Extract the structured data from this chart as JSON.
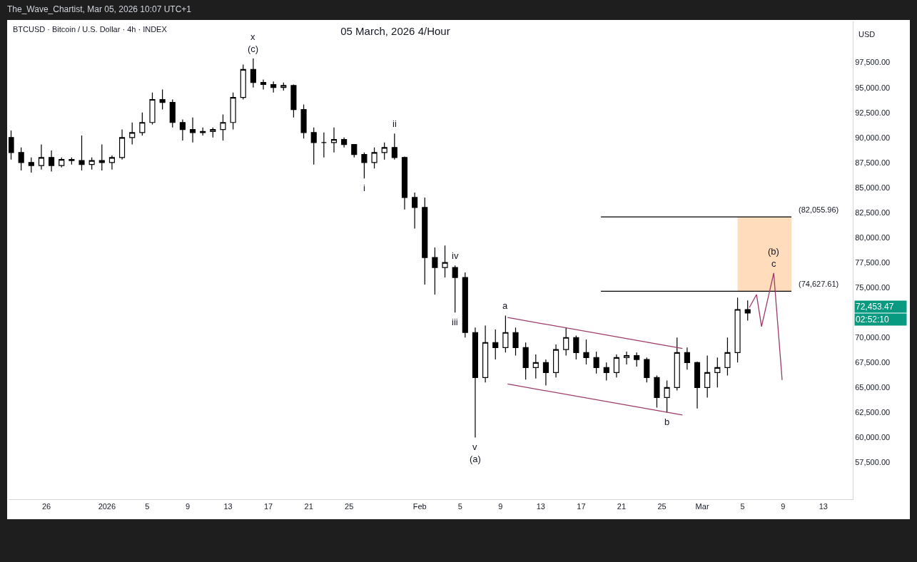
{
  "chart_data": {
    "type": "candlestick",
    "title": "05 March, 2026 4/Hour",
    "subtitle": "BTCUSD · Bitcoin / U.S. Dollar · 4h · INDEX",
    "color": "#000000",
    "x": [
      "2025-12-22T12:00",
      "2025-12-23T12:00",
      "2025-12-24T12:00",
      "2025-12-25T12:00",
      "2025-12-26T12:00",
      "2025-12-27T12:00",
      "2025-12-28T12:00",
      "2025-12-29T12:00",
      "2025-12-30T12:00",
      "2025-12-31T12:00",
      "2026-01-01T12:00",
      "2026-01-02T12:00",
      "2026-01-03T12:00",
      "2026-01-04T12:00",
      "2026-01-05T12:00",
      "2026-01-06T12:00",
      "2026-01-07T12:00",
      "2026-01-08T12:00",
      "2026-01-09T12:00",
      "2026-01-10T12:00",
      "2026-01-11T12:00",
      "2026-01-12T12:00",
      "2026-01-13T12:00",
      "2026-01-14T12:00",
      "2026-01-15T12:00",
      "2026-01-16T12:00",
      "2026-01-17T12:00",
      "2026-01-18T12:00",
      "2026-01-19T12:00",
      "2026-01-20T12:00",
      "2026-01-21T12:00",
      "2026-01-22T12:00",
      "2026-01-23T12:00",
      "2026-01-24T12:00",
      "2026-01-25T12:00",
      "2026-01-26T12:00",
      "2026-01-27T12:00",
      "2026-01-28T12:00",
      "2026-01-29T12:00",
      "2026-01-30T12:00",
      "2026-01-31T12:00",
      "2026-02-01T12:00",
      "2026-02-02T12:00",
      "2026-02-03T12:00",
      "2026-02-04T12:00",
      "2026-02-05T12:00",
      "2026-02-06T12:00",
      "2026-02-07T12:00",
      "2026-02-08T12:00",
      "2026-02-09T12:00",
      "2026-02-10T12:00",
      "2026-02-11T12:00",
      "2026-02-12T12:00",
      "2026-02-13T12:00",
      "2026-02-14T12:00",
      "2026-02-15T12:00",
      "2026-02-16T12:00",
      "2026-02-17T12:00",
      "2026-02-18T12:00",
      "2026-02-19T12:00",
      "2026-02-20T12:00",
      "2026-02-21T12:00",
      "2026-02-22T12:00",
      "2026-02-23T12:00",
      "2026-02-24T12:00",
      "2026-02-25T12:00",
      "2026-02-26T12:00",
      "2026-02-27T12:00",
      "2026-02-28T12:00",
      "2026-03-01T12:00",
      "2026-03-02T12:00",
      "2026-03-03T12:00",
      "2026-03-04T12:00",
      "2026-03-05T12:00"
    ],
    "ohlc": [
      [
        90000,
        90700,
        87800,
        88500
      ],
      [
        88500,
        89000,
        86700,
        87500
      ],
      [
        87500,
        88000,
        86500,
        87200
      ],
      [
        87200,
        89300,
        86800,
        88000
      ],
      [
        88000,
        88700,
        86600,
        87200
      ],
      [
        87200,
        88000,
        87000,
        87800
      ],
      [
        87800,
        88000,
        87300,
        87700
      ],
      [
        87700,
        90200,
        86700,
        87300
      ],
      [
        87300,
        88000,
        86800,
        87700
      ],
      [
        87700,
        89300,
        86700,
        87500
      ],
      [
        87500,
        88200,
        86800,
        88000
      ],
      [
        88000,
        90800,
        87800,
        90000
      ],
      [
        90000,
        91500,
        89300,
        90500
      ],
      [
        90500,
        92500,
        90200,
        91500
      ],
      [
        91500,
        94500,
        91300,
        93800
      ],
      [
        93800,
        94800,
        92800,
        93500
      ],
      [
        93500,
        93800,
        91000,
        91500
      ],
      [
        91500,
        91800,
        89700,
        90800
      ],
      [
        90800,
        92000,
        89500,
        90500
      ],
      [
        90500,
        91000,
        90200,
        90600
      ],
      [
        90600,
        91000,
        90000,
        90800
      ],
      [
        90800,
        92300,
        89700,
        91500
      ],
      [
        91500,
        94500,
        90800,
        94000
      ],
      [
        94000,
        97300,
        93800,
        96800
      ],
      [
        96800,
        97900,
        95000,
        95500
      ],
      [
        95500,
        95800,
        94800,
        95300
      ],
      [
        95300,
        95600,
        94500,
        95000
      ],
      [
        95000,
        95500,
        94700,
        95200
      ],
      [
        95200,
        95300,
        92000,
        92800
      ],
      [
        92800,
        93300,
        89900,
        90500
      ],
      [
        90500,
        91000,
        87300,
        89500
      ],
      [
        89500,
        90500,
        88000,
        89500
      ],
      [
        89500,
        91000,
        88500,
        89800
      ],
      [
        89800,
        90000,
        89000,
        89300
      ],
      [
        89300,
        89300,
        88000,
        88300
      ],
      [
        88300,
        88500,
        85900,
        87500
      ],
      [
        87500,
        89000,
        86900,
        88500
      ],
      [
        88500,
        89500,
        87800,
        89000
      ],
      [
        89000,
        90400,
        87800,
        88000
      ],
      [
        88000,
        88100,
        82800,
        84000
      ],
      [
        84000,
        84500,
        80900,
        83000
      ],
      [
        83000,
        84000,
        75300,
        78000
      ],
      [
        78000,
        79000,
        74300,
        77000
      ],
      [
        77000,
        79200,
        76000,
        77500
      ],
      [
        77000,
        77200,
        72500,
        76000
      ],
      [
        76000,
        76500,
        70000,
        70500
      ],
      [
        70500,
        71000,
        60000,
        66000
      ],
      [
        66000,
        71200,
        65500,
        69500
      ],
      [
        69500,
        70800,
        67800,
        69000
      ],
      [
        69000,
        72200,
        68500,
        70500
      ],
      [
        70500,
        71000,
        68200,
        69000
      ],
      [
        69000,
        69500,
        65800,
        67000
      ],
      [
        67000,
        68300,
        65900,
        67500
      ],
      [
        67500,
        67800,
        65200,
        66500
      ],
      [
        66500,
        69300,
        66000,
        68800
      ],
      [
        68800,
        71000,
        68200,
        70000
      ],
      [
        70000,
        70200,
        67800,
        68500
      ],
      [
        68500,
        69800,
        67300,
        68000
      ],
      [
        68000,
        68600,
        66400,
        67000
      ],
      [
        67000,
        67500,
        65700,
        66500
      ],
      [
        66500,
        68300,
        66000,
        68000
      ],
      [
        68000,
        68600,
        67300,
        68200
      ],
      [
        68200,
        68500,
        67100,
        67800
      ],
      [
        67800,
        68000,
        65500,
        66000
      ],
      [
        66000,
        66200,
        63000,
        64000
      ],
      [
        64000,
        65700,
        62500,
        65000
      ],
      [
        65000,
        70000,
        64700,
        68500
      ],
      [
        68500,
        69000,
        66800,
        67500
      ],
      [
        67500,
        67600,
        62900,
        65000
      ],
      [
        65000,
        68200,
        64000,
        66500
      ],
      [
        66500,
        68000,
        65000,
        67000
      ],
      [
        67000,
        70000,
        66200,
        68500
      ],
      [
        68500,
        74000,
        67500,
        72800
      ],
      [
        72800,
        73700,
        71700,
        72453.47
      ]
    ],
    "series": [
      {
        "type": "line",
        "color": "#000000",
        "x": [
          "2026-02-18T23:00",
          "2026-03-09T20:00"
        ],
        "values": [
          82055.96,
          82055.96
        ]
      },
      {
        "type": "line",
        "color": "#000000",
        "x": [
          "2026-02-18T23:00",
          "2026-03-09T20:00"
        ],
        "values": [
          74627.61,
          74627.61
        ]
      },
      {
        "type": "line",
        "color": "#9c3a6a",
        "x": [
          "2026-02-09T17:00",
          "2026-02-27T01:00"
        ],
        "values": [
          72000,
          68900
        ]
      },
      {
        "type": "line",
        "color": "#9c3a6a",
        "x": [
          "2026-02-09T17:00",
          "2026-02-27T01:00"
        ],
        "values": [
          65350,
          62250
        ]
      },
      {
        "type": "line",
        "color": "#9c3a6a",
        "x": [
          "2026-03-05T16:00",
          "2026-03-06T09:00",
          "2026-03-06T21:00",
          "2026-03-08T02:00",
          "2026-03-08T22:00"
        ],
        "values": [
          73000,
          74300,
          71100,
          76450,
          65750
        ]
      }
    ],
    "bands": [
      {
        "axis": "y",
        "from": 74627.61,
        "to": 82055.96,
        "color": "#ffdcbc"
      }
    ],
    "xlim": [
      "2025-12-22T06:00",
      "2026-03-15T22:00"
    ],
    "xticks": [
      {
        "value": "2025-12-26",
        "label": "26"
      },
      {
        "value": "2026-01-01",
        "label": "2026"
      },
      {
        "value": "2026-01-05",
        "label": "5"
      },
      {
        "value": "2026-01-09",
        "label": "9"
      },
      {
        "value": "2026-01-13",
        "label": "13"
      },
      {
        "value": "2026-01-17",
        "label": "17"
      },
      {
        "value": "2026-01-21",
        "label": "21"
      },
      {
        "value": "2026-01-25",
        "label": "25"
      },
      {
        "value": "2026-02-01",
        "label": "Feb"
      },
      {
        "value": "2026-02-05",
        "label": "5"
      },
      {
        "value": "2026-02-09",
        "label": "9"
      },
      {
        "value": "2026-02-13",
        "label": "13"
      },
      {
        "value": "2026-02-17",
        "label": "17"
      },
      {
        "value": "2026-02-21",
        "label": "21"
      },
      {
        "value": "2026-02-25",
        "label": "25"
      },
      {
        "value": "2026-03-01",
        "label": "Mar"
      },
      {
        "value": "2026-03-05",
        "label": "5"
      },
      {
        "value": "2026-03-09",
        "label": "9"
      },
      {
        "value": "2026-03-13",
        "label": "13"
      }
    ],
    "ylim": [
      53830,
      101610
    ],
    "yticks": [
      {
        "value": 57500,
        "label": "57,500.00"
      },
      {
        "value": 60000,
        "label": "60,000.00"
      },
      {
        "value": 62500,
        "label": "62,500.00"
      },
      {
        "value": 65000,
        "label": "65,000.00"
      },
      {
        "value": 67500,
        "label": "67,500.00"
      },
      {
        "value": 70000,
        "label": "70,000.00"
      },
      {
        "value": 75000,
        "label": "75,000.00"
      },
      {
        "value": 77500,
        "label": "77,500.00"
      },
      {
        "value": 80000,
        "label": "80,000.00"
      },
      {
        "value": 82500,
        "label": "82,500.00"
      },
      {
        "value": 85000,
        "label": "85,000.00"
      },
      {
        "value": 87500,
        "label": "87,500.00"
      },
      {
        "value": 90000,
        "label": "90,000.00"
      },
      {
        "value": 92500,
        "label": "92,500.00"
      },
      {
        "value": 95000,
        "label": "95,000.00"
      },
      {
        "value": 97500,
        "label": "97,500.00"
      }
    ],
    "annotations": [
      "The_Wave_Chartist, Mar 05, 2026 10:07 UTC+1",
      "USD",
      "72,453.47",
      "02:52:10",
      {
        "text": "(82,055.96)",
        "x": "2026-03-09T20:00",
        "y": 82055.96
      },
      {
        "text": "(74,627.61)",
        "x": "2026-03-09T20:00",
        "y": 74627.61
      },
      {
        "text": "(c)",
        "x": "2026-01-15T12:00",
        "y": 97900
      },
      {
        "text": "x",
        "x": "2026-01-15T12:00",
        "y": 97900
      },
      {
        "text": "i",
        "x": "2026-01-26T12:00",
        "y": 85900
      },
      {
        "text": "ii",
        "x": "2026-01-29T12:00",
        "y": 90400
      },
      {
        "text": "iii",
        "x": "2026-02-04T12:00",
        "y": 72500
      },
      {
        "text": "iv",
        "x": "2026-02-04T12:00",
        "y": 77200
      },
      {
        "text": "v",
        "x": "2026-02-06T12:00",
        "y": 60000
      },
      {
        "text": "(a)",
        "x": "2026-02-06T12:00",
        "y": 60000
      },
      {
        "text": "a",
        "x": "2026-02-09T12:00",
        "y": 72200
      },
      {
        "text": "b",
        "x": "2026-02-25T12:00",
        "y": 62500
      },
      {
        "text": "c",
        "x": "2026-03-08T02:00",
        "y": 76450
      },
      {
        "text": "(b)",
        "x": "2026-03-08T02:00",
        "y": 76450
      }
    ]
  }
}
